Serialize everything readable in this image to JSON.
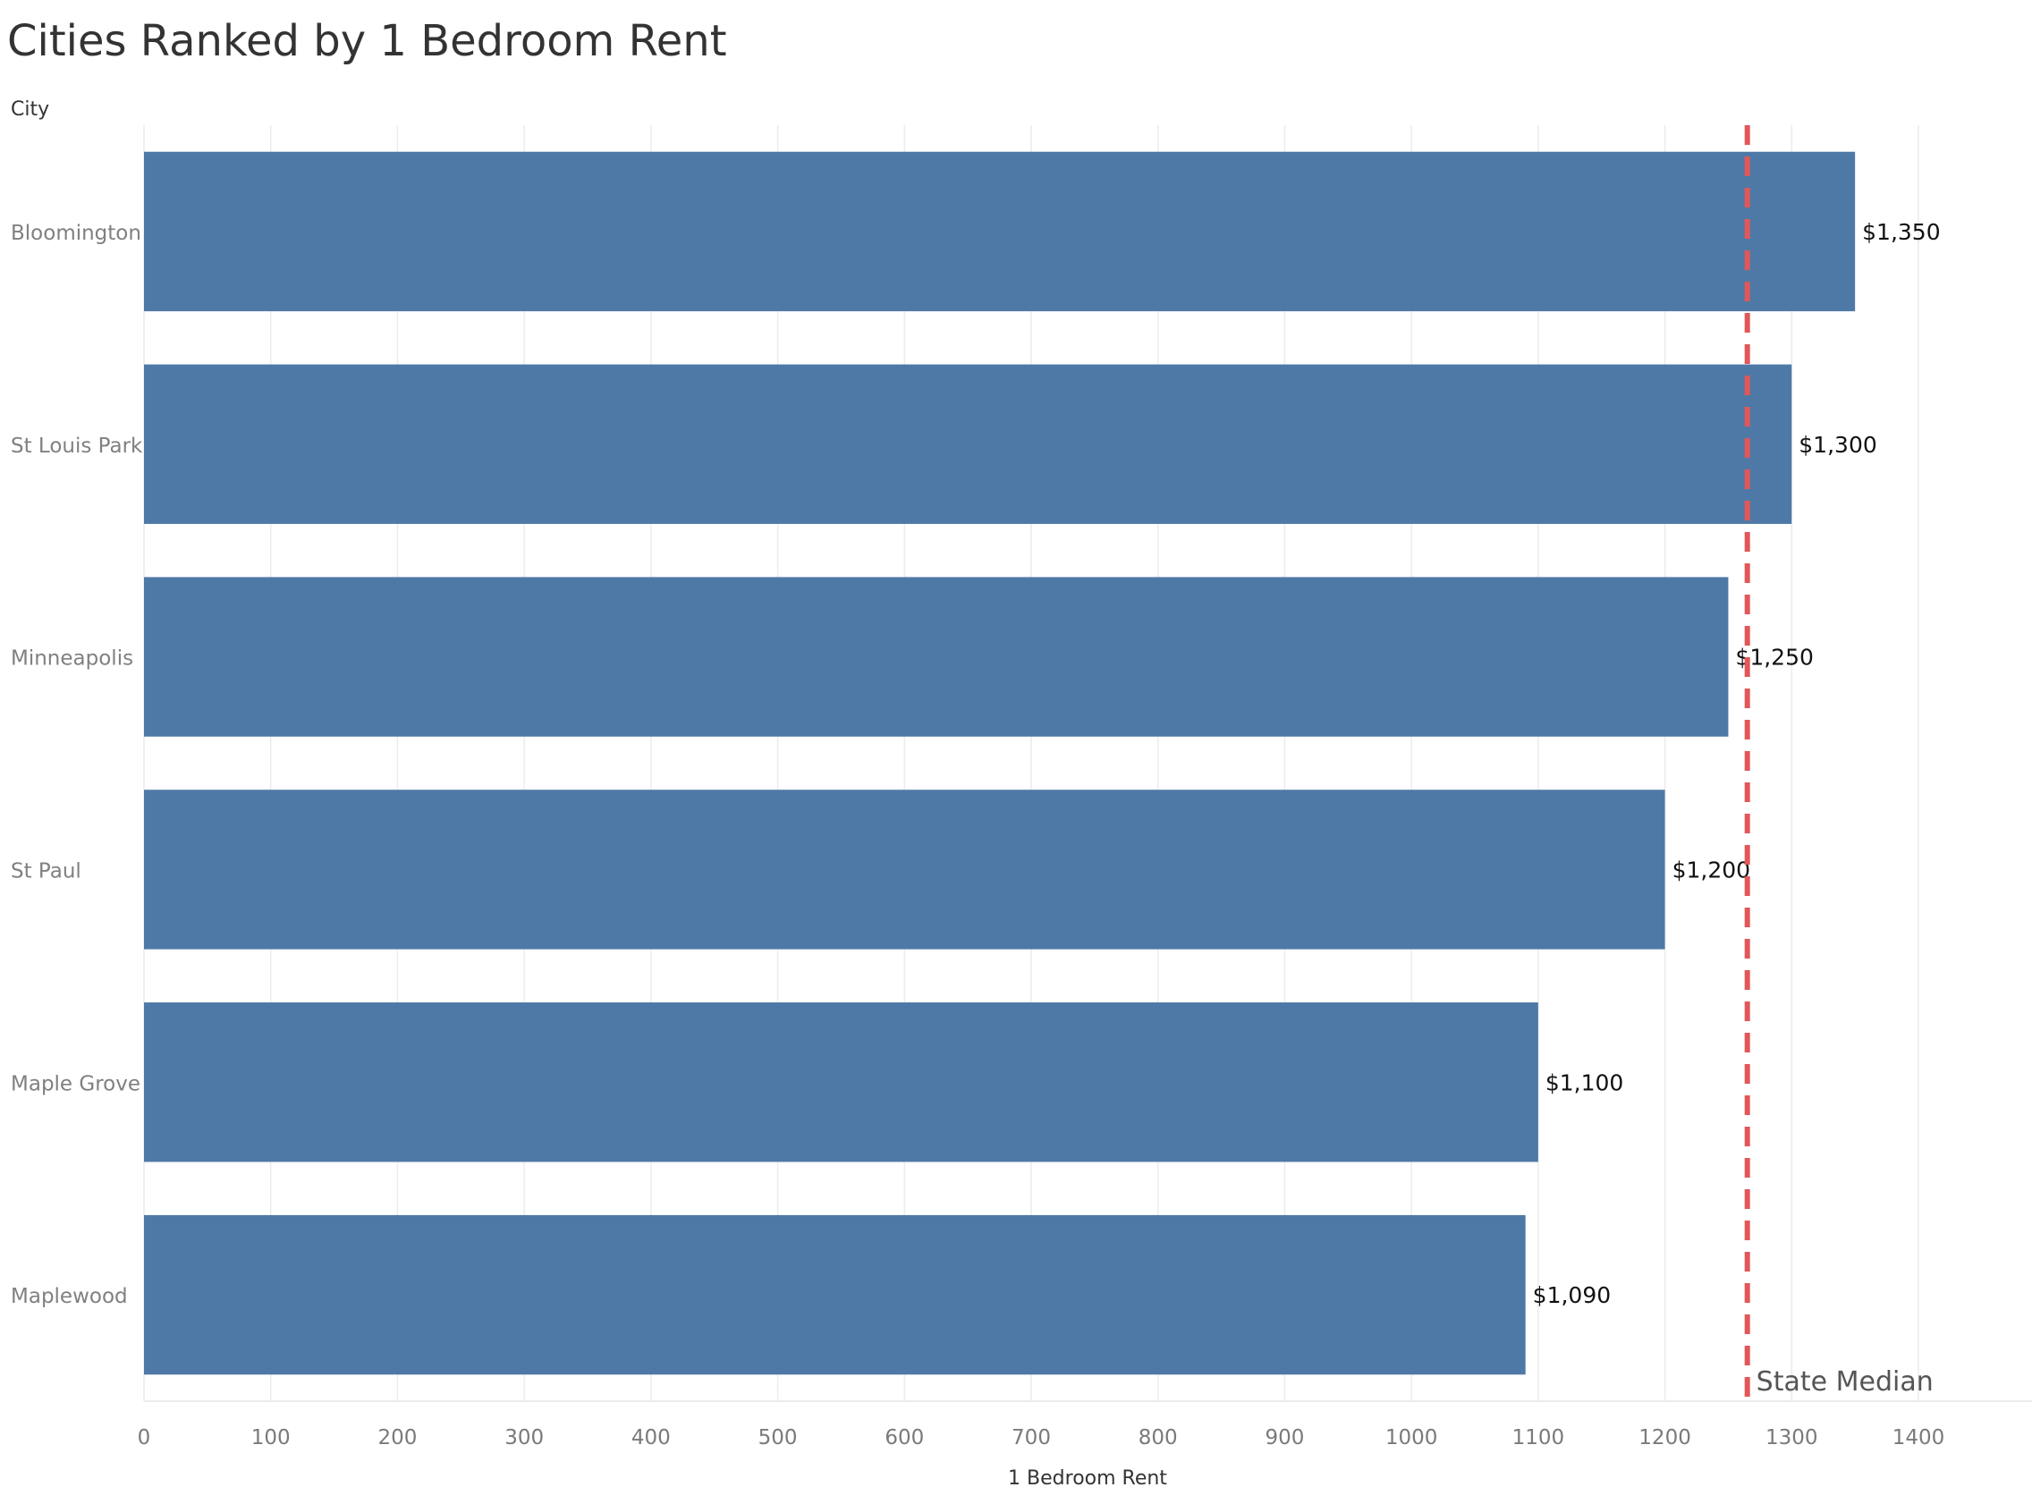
{
  "chart_data": {
    "type": "bar",
    "orientation": "horizontal",
    "title": "Cities Ranked by 1 Bedroom Rent",
    "ylabel": "City",
    "xlabel": "1 Bedroom Rent",
    "categories": [
      "Bloomington",
      "St Louis Park",
      "Minneapolis",
      "St Paul",
      "Maple Grove",
      "Maplewood"
    ],
    "values": [
      1350,
      1300,
      1250,
      1200,
      1100,
      1090
    ],
    "value_labels": [
      "$1,350",
      "$1,300",
      "$1,250",
      "$1,200",
      "$1,100",
      "$1,090"
    ],
    "xlim": [
      0,
      1400
    ],
    "x_ticks": [
      0,
      100,
      200,
      300,
      400,
      500,
      600,
      700,
      800,
      900,
      1000,
      1100,
      1200,
      1300,
      1400
    ],
    "grid": true,
    "reference_line": {
      "label": "State Median",
      "value": 1265,
      "style": "dashed"
    },
    "colors": {
      "bar": "#4e79a7",
      "reference_line": "#e15759"
    }
  }
}
